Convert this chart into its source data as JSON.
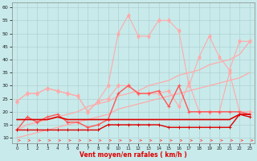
{
  "x": [
    0,
    1,
    2,
    3,
    4,
    5,
    6,
    7,
    8,
    9,
    10,
    11,
    12,
    13,
    14,
    15,
    16,
    17,
    18,
    19,
    20,
    21,
    22,
    23
  ],
  "rafales_top": [
    24,
    27,
    27,
    29,
    28,
    27,
    26,
    20,
    24,
    30,
    50,
    57,
    49,
    49,
    55,
    55,
    51,
    30,
    41,
    49,
    41,
    36,
    47,
    47
  ],
  "rafales_bot": [
    24,
    27,
    27,
    29,
    28,
    27,
    26,
    20,
    24,
    25,
    30,
    30,
    27,
    27,
    27,
    28,
    22,
    31,
    20,
    20,
    20,
    35,
    20,
    20
  ],
  "trend_top": [
    13,
    15,
    16,
    17,
    18,
    19,
    20,
    22,
    23,
    24,
    26,
    27,
    28,
    30,
    31,
    32,
    34,
    35,
    36,
    38,
    39,
    40,
    42,
    47
  ],
  "trend_bot": [
    10,
    11,
    12,
    13,
    14,
    15,
    16,
    17,
    18,
    19,
    21,
    22,
    23,
    24,
    25,
    26,
    27,
    28,
    29,
    30,
    31,
    32,
    33,
    35
  ],
  "medium_jagged": [
    13,
    18,
    16,
    18,
    19,
    16,
    16,
    14,
    15,
    17,
    27,
    30,
    27,
    27,
    28,
    22,
    30,
    20,
    20,
    20,
    20,
    20,
    20,
    19
  ],
  "flat_top": [
    17,
    17,
    17,
    17,
    18,
    17,
    17,
    17,
    17,
    17,
    17,
    17,
    17,
    17,
    17,
    17,
    17,
    17,
    17,
    17,
    17,
    17,
    19,
    19
  ],
  "flat_bot": [
    13,
    13,
    13,
    13,
    13,
    13,
    13,
    13,
    13,
    15,
    15,
    15,
    15,
    15,
    15,
    14,
    14,
    14,
    14,
    14,
    14,
    14,
    19,
    18
  ],
  "xlabel": "Vent moyen/en rafales ( km/h )",
  "ylim": [
    8,
    62
  ],
  "yticks": [
    10,
    15,
    20,
    25,
    30,
    35,
    40,
    45,
    50,
    55,
    60
  ],
  "xticks": [
    0,
    1,
    2,
    3,
    4,
    5,
    6,
    7,
    8,
    9,
    10,
    11,
    12,
    13,
    14,
    15,
    16,
    17,
    18,
    19,
    20,
    21,
    22,
    23
  ],
  "bg_color": "#c8eaea",
  "grid_color": "#aacccc",
  "color_light": "#ffaaaa",
  "color_medium": "#ff5555",
  "color_dark": "#dd0000"
}
